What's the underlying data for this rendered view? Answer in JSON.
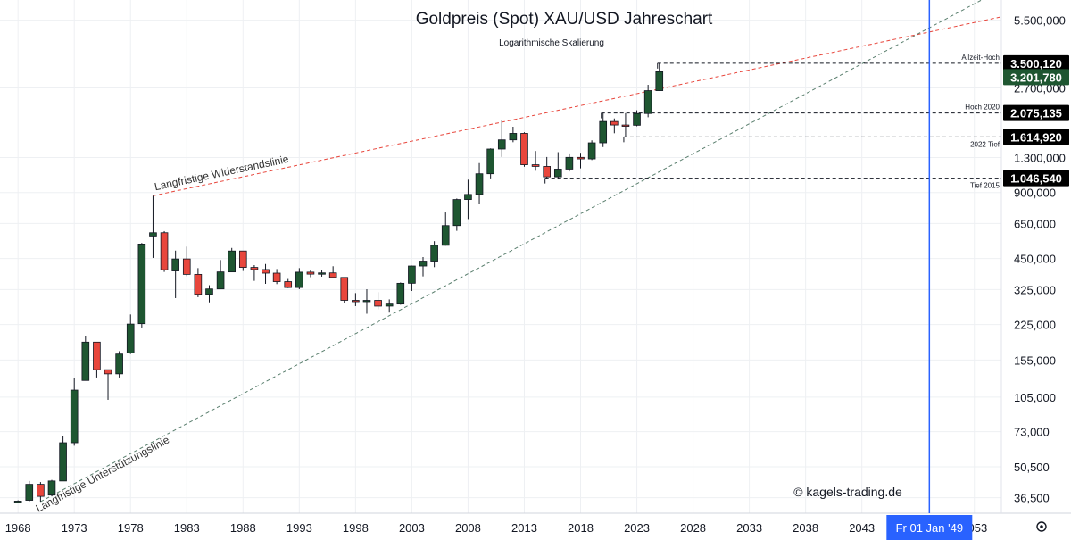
{
  "chart_data": {
    "type": "candlestick",
    "title": "Goldpreis (Spot) XAU/USD Jahreschart",
    "subtitle": "Logarithmische Skalierung",
    "copyright": "© kagels-trading.de",
    "scale": "log",
    "ylim": [
      31000,
      6800000
    ],
    "xlim": [
      1966.4,
      2055.4
    ],
    "y_ticks": [
      {
        "v": 5500000,
        "label": "5.500,000"
      },
      {
        "v": 2700000,
        "label": "2.700,000"
      },
      {
        "v": 1300000,
        "label": "1.300,000"
      },
      {
        "v": 900000,
        "label": "900,000"
      },
      {
        "v": 650000,
        "label": "650,000"
      },
      {
        "v": 450000,
        "label": "450,000"
      },
      {
        "v": 325000,
        "label": "325,000"
      },
      {
        "v": 225000,
        "label": "225,000"
      },
      {
        "v": 155000,
        "label": "155,000"
      },
      {
        "v": 105000,
        "label": "105,000"
      },
      {
        "v": 73000,
        "label": "73,000"
      },
      {
        "v": 50500,
        "label": "50,500"
      },
      {
        "v": 36500,
        "label": "36,500"
      }
    ],
    "x_ticks": [
      {
        "v": 1968,
        "label": "1968"
      },
      {
        "v": 1973,
        "label": "1973"
      },
      {
        "v": 1978,
        "label": "1978"
      },
      {
        "v": 1983,
        "label": "1983"
      },
      {
        "v": 1988,
        "label": "1988"
      },
      {
        "v": 1993,
        "label": "1993"
      },
      {
        "v": 1998,
        "label": "1998"
      },
      {
        "v": 2003,
        "label": "2003"
      },
      {
        "v": 2008,
        "label": "2008"
      },
      {
        "v": 2013,
        "label": "2013"
      },
      {
        "v": 2018,
        "label": "2018"
      },
      {
        "v": 2023,
        "label": "2023"
      },
      {
        "v": 2028,
        "label": "2028"
      },
      {
        "v": 2033,
        "label": "2033"
      },
      {
        "v": 2038,
        "label": "2038"
      },
      {
        "v": 2043,
        "label": "2043"
      },
      {
        "v": 2053,
        "label": "2053"
      }
    ],
    "cursor": {
      "year": 2049,
      "label": "Fr 01 Jan '49",
      "color": "#2962ff"
    },
    "up_color": "#1e5631",
    "down_color": "#e8463c",
    "candles": [
      {
        "year": 1968,
        "o": 35200,
        "h": 35500,
        "l": 35000,
        "c": 35200
      },
      {
        "year": 1969,
        "o": 35500,
        "h": 43500,
        "l": 35000,
        "c": 42000
      },
      {
        "year": 1970,
        "o": 42000,
        "h": 43000,
        "l": 35000,
        "c": 37000
      },
      {
        "year": 1971,
        "o": 37500,
        "h": 44000,
        "l": 37000,
        "c": 43500
      },
      {
        "year": 1972,
        "o": 43500,
        "h": 70000,
        "l": 43500,
        "c": 65000
      },
      {
        "year": 1973,
        "o": 65000,
        "h": 128000,
        "l": 63000,
        "c": 113000
      },
      {
        "year": 1974,
        "o": 125000,
        "h": 200000,
        "l": 125000,
        "c": 187000
      },
      {
        "year": 1975,
        "o": 187000,
        "h": 187000,
        "l": 129000,
        "c": 140000
      },
      {
        "year": 1976,
        "o": 140000,
        "h": 140000,
        "l": 102000,
        "c": 134000
      },
      {
        "year": 1977,
        "o": 134000,
        "h": 170000,
        "l": 129000,
        "c": 165000
      },
      {
        "year": 1978,
        "o": 167000,
        "h": 250000,
        "l": 165000,
        "c": 226000
      },
      {
        "year": 1979,
        "o": 227000,
        "h": 530000,
        "l": 218000,
        "c": 524000
      },
      {
        "year": 1980,
        "o": 570000,
        "h": 870000,
        "l": 453000,
        "c": 590000
      },
      {
        "year": 1981,
        "o": 590000,
        "h": 600000,
        "l": 391000,
        "c": 400000
      },
      {
        "year": 1982,
        "o": 395000,
        "h": 489000,
        "l": 297000,
        "c": 448000
      },
      {
        "year": 1983,
        "o": 448000,
        "h": 510000,
        "l": 374000,
        "c": 381000
      },
      {
        "year": 1984,
        "o": 381000,
        "h": 407000,
        "l": 300000,
        "c": 309000
      },
      {
        "year": 1985,
        "o": 309000,
        "h": 340000,
        "l": 284000,
        "c": 327000
      },
      {
        "year": 1986,
        "o": 327000,
        "h": 443000,
        "l": 326000,
        "c": 391000
      },
      {
        "year": 1987,
        "o": 391000,
        "h": 503000,
        "l": 391000,
        "c": 487000
      },
      {
        "year": 1988,
        "o": 487000,
        "h": 487000,
        "l": 395000,
        "c": 410000
      },
      {
        "year": 1989,
        "o": 410000,
        "h": 420000,
        "l": 356000,
        "c": 401000
      },
      {
        "year": 1990,
        "o": 401000,
        "h": 425000,
        "l": 345000,
        "c": 386000
      },
      {
        "year": 1991,
        "o": 386000,
        "h": 403000,
        "l": 344000,
        "c": 353000
      },
      {
        "year": 1992,
        "o": 353000,
        "h": 363000,
        "l": 330000,
        "c": 332000
      },
      {
        "year": 1993,
        "o": 332000,
        "h": 407000,
        "l": 326000,
        "c": 390000
      },
      {
        "year": 1994,
        "o": 390000,
        "h": 397000,
        "l": 370000,
        "c": 382000
      },
      {
        "year": 1995,
        "o": 382000,
        "h": 397000,
        "l": 372000,
        "c": 387000
      },
      {
        "year": 1996,
        "o": 387000,
        "h": 415000,
        "l": 367000,
        "c": 369000
      },
      {
        "year": 1997,
        "o": 369000,
        "h": 369000,
        "l": 283000,
        "c": 290000
      },
      {
        "year": 1998,
        "o": 290000,
        "h": 313000,
        "l": 273000,
        "c": 288000
      },
      {
        "year": 1999,
        "o": 288000,
        "h": 326000,
        "l": 252000,
        "c": 290000
      },
      {
        "year": 2000,
        "o": 290000,
        "h": 316000,
        "l": 264000,
        "c": 273000
      },
      {
        "year": 2001,
        "o": 273000,
        "h": 293000,
        "l": 255000,
        "c": 279000
      },
      {
        "year": 2002,
        "o": 279000,
        "h": 350000,
        "l": 277000,
        "c": 347000
      },
      {
        "year": 2003,
        "o": 347000,
        "h": 418000,
        "l": 320000,
        "c": 416000
      },
      {
        "year": 2004,
        "o": 416000,
        "h": 457000,
        "l": 373000,
        "c": 438000
      },
      {
        "year": 2005,
        "o": 438000,
        "h": 540000,
        "l": 411000,
        "c": 517000
      },
      {
        "year": 2006,
        "o": 517000,
        "h": 730000,
        "l": 515000,
        "c": 636000
      },
      {
        "year": 2007,
        "o": 636000,
        "h": 845000,
        "l": 602000,
        "c": 836000
      },
      {
        "year": 2008,
        "o": 836000,
        "h": 1030000,
        "l": 681000,
        "c": 882000
      },
      {
        "year": 2009,
        "o": 882000,
        "h": 1226000,
        "l": 801000,
        "c": 1096000
      },
      {
        "year": 2010,
        "o": 1096000,
        "h": 1431000,
        "l": 1044000,
        "c": 1421000
      },
      {
        "year": 2011,
        "o": 1421000,
        "h": 1921000,
        "l": 1308000,
        "c": 1565000
      },
      {
        "year": 2012,
        "o": 1565000,
        "h": 1796000,
        "l": 1527000,
        "c": 1675000
      },
      {
        "year": 2013,
        "o": 1675000,
        "h": 1695000,
        "l": 1180000,
        "c": 1205000
      },
      {
        "year": 2014,
        "o": 1205000,
        "h": 1392000,
        "l": 1131000,
        "c": 1184000
      },
      {
        "year": 2015,
        "o": 1184000,
        "h": 1307000,
        "l": 1046540,
        "c": 1061000
      },
      {
        "year": 2016,
        "o": 1061000,
        "h": 1375000,
        "l": 1045000,
        "c": 1151000
      },
      {
        "year": 2017,
        "o": 1151000,
        "h": 1357000,
        "l": 1123000,
        "c": 1302000
      },
      {
        "year": 2018,
        "o": 1302000,
        "h": 1366000,
        "l": 1160000,
        "c": 1281000
      },
      {
        "year": 2019,
        "o": 1281000,
        "h": 1557000,
        "l": 1266000,
        "c": 1517000
      },
      {
        "year": 2020,
        "o": 1517000,
        "h": 2075135,
        "l": 1451000,
        "c": 1898000
      },
      {
        "year": 2021,
        "o": 1898000,
        "h": 1959000,
        "l": 1677000,
        "c": 1829000
      },
      {
        "year": 2022,
        "o": 1829000,
        "h": 2070000,
        "l": 1614920,
        "c": 1824000
      },
      {
        "year": 2023,
        "o": 1824000,
        "h": 2135000,
        "l": 1805000,
        "c": 2063000
      },
      {
        "year": 2024,
        "o": 2063000,
        "h": 2790000,
        "l": 1984000,
        "c": 2624000
      },
      {
        "year": 2025,
        "o": 2624000,
        "h": 3500120,
        "l": 2614000,
        "c": 3201780
      }
    ],
    "levels": [
      {
        "name": "Allzeit-Hoch",
        "price": 3500120,
        "label": "3.500,120",
        "from": 2025,
        "bg": "#000000"
      },
      {
        "name": "Hoch 2020",
        "price": 2075135,
        "label": "2.075,135",
        "from": 2020,
        "bg": "#000000"
      },
      {
        "name": "2022 Tief",
        "price": 1614920,
        "label": "1.614,920",
        "from": 2022,
        "bg": "#000000"
      },
      {
        "name": "Tief 2015",
        "price": 1046540,
        "label": "1.046,540",
        "from": 2015,
        "bg": "#000000"
      }
    ],
    "last_price": {
      "price": 3201780,
      "label": "3.201,780",
      "bg": "#1e5631"
    },
    "trendlines": [
      {
        "name": "Langfristige Widerstandslinie",
        "color": "#e8463c",
        "p1": {
          "year": 1980,
          "price": 870000
        },
        "p2": {
          "year": 2055.4,
          "price": 5700000
        }
      },
      {
        "name": "Langfristige Unterstützungslinie",
        "color": "#5a7f6e",
        "p1": {
          "year": 1970,
          "price": 35000
        },
        "p2": {
          "year": 2055.4,
          "price": 7600000
        }
      }
    ]
  }
}
